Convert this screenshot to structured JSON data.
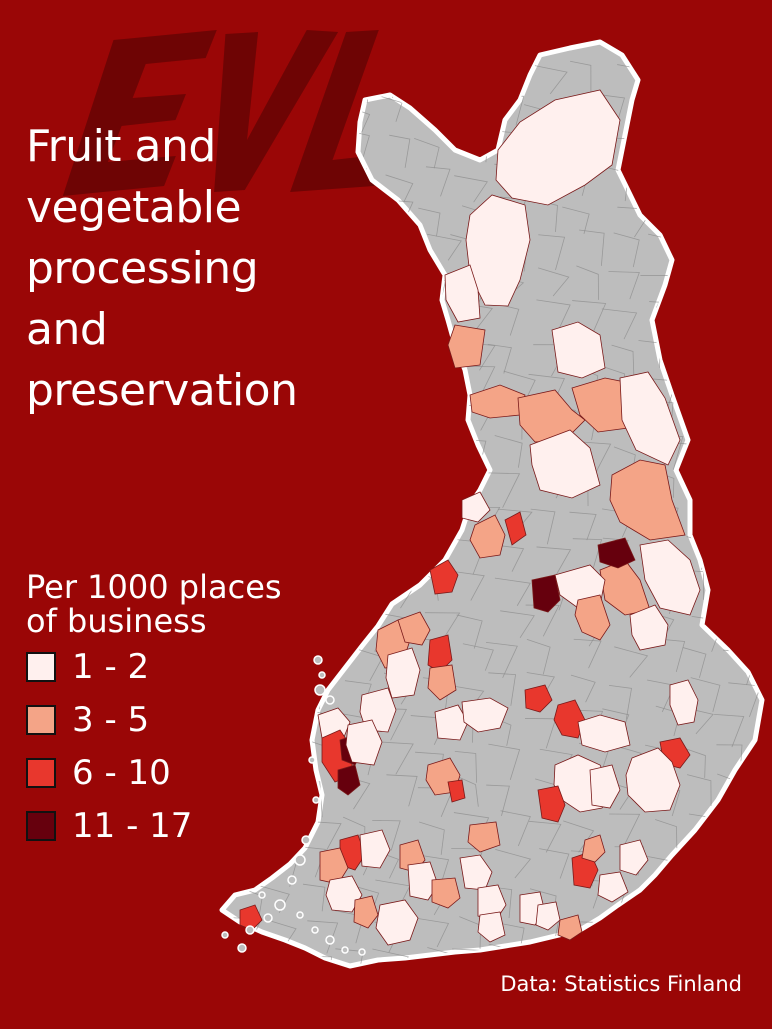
{
  "title_lines": [
    "Fruit and",
    "vegetable",
    "processing",
    "and",
    "preservation"
  ],
  "watermark": {
    "text": "EVL",
    "color": "#6e0404"
  },
  "legend": {
    "title_lines": [
      "Per 1000 places",
      "of business"
    ],
    "items": [
      {
        "label": "1 - 2",
        "color": "#fff0ee"
      },
      {
        "label": "3 - 5",
        "color": "#f4a487"
      },
      {
        "label": "6 - 10",
        "color": "#e8372d"
      },
      {
        "label": "11 - 17",
        "color": "#66000d"
      }
    ]
  },
  "source": "Data: Statistics Finland",
  "colors": {
    "background": "#9a0606",
    "no_data": "#bdbdbd",
    "outline": "#ffffff",
    "border": "#8a8a8a"
  }
}
